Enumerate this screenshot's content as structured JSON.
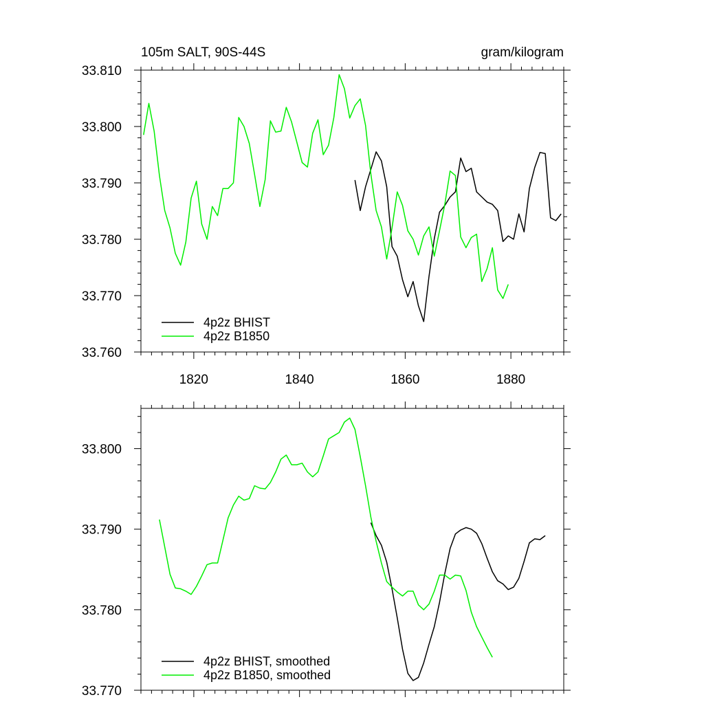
{
  "chart_data": [
    {
      "type": "line",
      "title_left": "105m SALT, 90S-44S",
      "title_right": "gram/kilogram",
      "xlim": [
        1810,
        1890
      ],
      "ylim": [
        33.76,
        33.81
      ],
      "xticks": [
        1820,
        1840,
        1860,
        1880
      ],
      "xtick_labels": [
        "1820",
        "1840",
        "1860",
        "1880"
      ],
      "yticks": [
        33.76,
        33.77,
        33.78,
        33.79,
        33.8,
        33.81
      ],
      "ytick_labels": [
        "33.760",
        "33.770",
        "33.780",
        "33.790",
        "33.800",
        "33.810"
      ],
      "legend_position": "bottom-left",
      "series": [
        {
          "name": "4p2z BHIST",
          "color": "#000000",
          "points": [
            [
              1850.5,
              33.7905
            ],
            [
              1851.5,
              33.7851
            ],
            [
              1852.5,
              33.7893
            ],
            [
              1853.5,
              33.7924
            ],
            [
              1854.5,
              33.7955
            ],
            [
              1855.5,
              33.7939
            ],
            [
              1856.5,
              33.7893
            ],
            [
              1857.5,
              33.7787
            ],
            [
              1858.5,
              33.777
            ],
            [
              1859.5,
              33.7728
            ],
            [
              1860.5,
              33.7698
            ],
            [
              1861.5,
              33.7725
            ],
            [
              1862.5,
              33.7682
            ],
            [
              1863.5,
              33.7654
            ],
            [
              1864.5,
              33.7734
            ],
            [
              1865.5,
              33.7801
            ],
            [
              1866.5,
              33.7848
            ],
            [
              1867.5,
              33.786
            ],
            [
              1868.5,
              33.7875
            ],
            [
              1869.5,
              33.7884
            ],
            [
              1870.5,
              33.7944
            ],
            [
              1871.5,
              33.792
            ],
            [
              1872.5,
              33.7926
            ],
            [
              1873.5,
              33.7884
            ],
            [
              1874.5,
              33.7875
            ],
            [
              1875.5,
              33.7866
            ],
            [
              1876.5,
              33.7862
            ],
            [
              1877.5,
              33.7851
            ],
            [
              1878.5,
              33.7796
            ],
            [
              1879.5,
              33.7806
            ],
            [
              1880.5,
              33.78
            ],
            [
              1881.5,
              33.7845
            ],
            [
              1882.5,
              33.7813
            ],
            [
              1883.5,
              33.789
            ],
            [
              1884.5,
              33.7927
            ],
            [
              1885.5,
              33.7954
            ],
            [
              1886.5,
              33.7952
            ],
            [
              1887.5,
              33.7838
            ],
            [
              1888.5,
              33.7833
            ],
            [
              1889.5,
              33.7845
            ]
          ]
        },
        {
          "name": "4p2z B1850",
          "color": "#00ee00",
          "points": [
            [
              1810.5,
              33.7985
            ],
            [
              1811.5,
              33.8041
            ],
            [
              1812.5,
              33.7992
            ],
            [
              1813.5,
              33.7913
            ],
            [
              1814.5,
              33.7851
            ],
            [
              1815.5,
              33.782
            ],
            [
              1816.5,
              33.7775
            ],
            [
              1817.5,
              33.7754
            ],
            [
              1818.5,
              33.7795
            ],
            [
              1819.5,
              33.7873
            ],
            [
              1820.5,
              33.7903
            ],
            [
              1821.5,
              33.7827
            ],
            [
              1822.5,
              33.78
            ],
            [
              1823.5,
              33.7858
            ],
            [
              1824.5,
              33.7842
            ],
            [
              1825.5,
              33.789
            ],
            [
              1826.5,
              33.789
            ],
            [
              1827.5,
              33.79
            ],
            [
              1828.5,
              33.8016
            ],
            [
              1829.5,
              33.8
            ],
            [
              1830.5,
              33.797
            ],
            [
              1831.5,
              33.7915
            ],
            [
              1832.5,
              33.7858
            ],
            [
              1833.5,
              33.7906
            ],
            [
              1834.5,
              33.801
            ],
            [
              1835.5,
              33.799
            ],
            [
              1836.5,
              33.7992
            ],
            [
              1837.5,
              33.8034
            ],
            [
              1838.5,
              33.8008
            ],
            [
              1839.5,
              33.7972
            ],
            [
              1840.5,
              33.7936
            ],
            [
              1841.5,
              33.7928
            ],
            [
              1842.5,
              33.7988
            ],
            [
              1843.5,
              33.8012
            ],
            [
              1844.5,
              33.795
            ],
            [
              1845.5,
              33.7967
            ],
            [
              1846.5,
              33.8016
            ],
            [
              1847.5,
              33.8092
            ],
            [
              1848.5,
              33.8067
            ],
            [
              1849.5,
              33.8015
            ],
            [
              1850.5,
              33.8037
            ],
            [
              1851.5,
              33.8049
            ],
            [
              1852.5,
              33.8002
            ],
            [
              1853.5,
              33.7916
            ],
            [
              1854.5,
              33.7851
            ],
            [
              1855.5,
              33.7822
            ],
            [
              1856.5,
              33.7765
            ],
            [
              1857.5,
              33.782
            ],
            [
              1858.5,
              33.7884
            ],
            [
              1859.5,
              33.786
            ],
            [
              1860.5,
              33.7815
            ],
            [
              1861.5,
              33.78
            ],
            [
              1862.5,
              33.7772
            ],
            [
              1863.5,
              33.7806
            ],
            [
              1864.5,
              33.7822
            ],
            [
              1865.5,
              33.777
            ],
            [
              1866.5,
              33.7815
            ],
            [
              1867.5,
              33.7862
            ],
            [
              1868.5,
              33.7921
            ],
            [
              1869.5,
              33.7913
            ],
            [
              1870.5,
              33.7804
            ],
            [
              1871.5,
              33.7785
            ],
            [
              1872.5,
              33.7803
            ],
            [
              1873.5,
              33.7809
            ],
            [
              1874.5,
              33.7725
            ],
            [
              1875.5,
              33.7748
            ],
            [
              1876.5,
              33.7785
            ],
            [
              1877.5,
              33.771
            ],
            [
              1878.5,
              33.7695
            ],
            [
              1879.5,
              33.772
            ]
          ]
        }
      ]
    },
    {
      "type": "line",
      "xlim": [
        1810,
        1890
      ],
      "ylim": [
        33.77,
        33.805
      ],
      "xticks": [
        1820,
        1840,
        1860,
        1880
      ],
      "yticks": [
        33.77,
        33.78,
        33.79,
        33.8
      ],
      "ytick_labels": [
        "33.770",
        "33.780",
        "33.790",
        "33.800"
      ],
      "legend_position": "bottom-left",
      "series": [
        {
          "name": "4p2z BHIST, smoothed",
          "color": "#000000",
          "points": [
            [
              1853.5,
              33.7908
            ],
            [
              1854.5,
              33.7892
            ],
            [
              1855.5,
              33.788
            ],
            [
              1856.5,
              33.7859
            ],
            [
              1857.5,
              33.7826
            ],
            [
              1858.5,
              33.779
            ],
            [
              1859.5,
              33.7751
            ],
            [
              1860.5,
              33.7721
            ],
            [
              1861.5,
              33.7712
            ],
            [
              1862.5,
              33.7716
            ],
            [
              1863.5,
              33.7734
            ],
            [
              1864.5,
              33.7757
            ],
            [
              1865.5,
              33.7779
            ],
            [
              1866.5,
              33.7809
            ],
            [
              1867.5,
              33.7845
            ],
            [
              1868.5,
              33.7876
            ],
            [
              1869.5,
              33.7894
            ],
            [
              1870.5,
              33.7899
            ],
            [
              1871.5,
              33.7902
            ],
            [
              1872.5,
              33.79
            ],
            [
              1873.5,
              33.7895
            ],
            [
              1874.5,
              33.7882
            ],
            [
              1875.5,
              33.7864
            ],
            [
              1876.5,
              33.7847
            ],
            [
              1877.5,
              33.7836
            ],
            [
              1878.5,
              33.7832
            ],
            [
              1879.5,
              33.7825
            ],
            [
              1880.5,
              33.7828
            ],
            [
              1881.5,
              33.7839
            ],
            [
              1882.5,
              33.786
            ],
            [
              1883.5,
              33.7883
            ],
            [
              1884.5,
              33.7888
            ],
            [
              1885.5,
              33.7887
            ],
            [
              1886.5,
              33.7892
            ]
          ]
        },
        {
          "name": "4p2z B1850, smoothed",
          "color": "#00ee00",
          "points": [
            [
              1813.5,
              33.7912
            ],
            [
              1814.5,
              33.7878
            ],
            [
              1815.5,
              33.7844
            ],
            [
              1816.5,
              33.7827
            ],
            [
              1817.5,
              33.7826
            ],
            [
              1818.5,
              33.7823
            ],
            [
              1819.5,
              33.7819
            ],
            [
              1820.5,
              33.7829
            ],
            [
              1821.5,
              33.7842
            ],
            [
              1822.5,
              33.7856
            ],
            [
              1823.5,
              33.7858
            ],
            [
              1824.5,
              33.7858
            ],
            [
              1825.5,
              33.7886
            ],
            [
              1826.5,
              33.7914
            ],
            [
              1827.5,
              33.793
            ],
            [
              1828.5,
              33.7941
            ],
            [
              1829.5,
              33.7936
            ],
            [
              1830.5,
              33.7938
            ],
            [
              1831.5,
              33.7954
            ],
            [
              1832.5,
              33.7951
            ],
            [
              1833.5,
              33.795
            ],
            [
              1834.5,
              33.7958
            ],
            [
              1835.5,
              33.7971
            ],
            [
              1836.5,
              33.7987
            ],
            [
              1837.5,
              33.7992
            ],
            [
              1838.5,
              33.798
            ],
            [
              1839.5,
              33.798
            ],
            [
              1840.5,
              33.7982
            ],
            [
              1841.5,
              33.7971
            ],
            [
              1842.5,
              33.7965
            ],
            [
              1843.5,
              33.7971
            ],
            [
              1844.5,
              33.7991
            ],
            [
              1845.5,
              33.8012
            ],
            [
              1846.5,
              33.8016
            ],
            [
              1847.5,
              33.802
            ],
            [
              1848.5,
              33.8033
            ],
            [
              1849.5,
              33.8038
            ],
            [
              1850.5,
              33.8024
            ],
            [
              1851.5,
              33.799
            ],
            [
              1852.5,
              33.7954
            ],
            [
              1853.5,
              33.7915
            ],
            [
              1854.5,
              33.7885
            ],
            [
              1855.5,
              33.7858
            ],
            [
              1856.5,
              33.7835
            ],
            [
              1857.5,
              33.7828
            ],
            [
              1858.5,
              33.7822
            ],
            [
              1859.5,
              33.7817
            ],
            [
              1860.5,
              33.7823
            ],
            [
              1861.5,
              33.7823
            ],
            [
              1862.5,
              33.7806
            ],
            [
              1863.5,
              33.78
            ],
            [
              1864.5,
              33.7807
            ],
            [
              1865.5,
              33.7823
            ],
            [
              1866.5,
              33.7843
            ],
            [
              1867.5,
              33.7843
            ],
            [
              1868.5,
              33.7838
            ],
            [
              1869.5,
              33.7843
            ],
            [
              1870.5,
              33.7842
            ],
            [
              1871.5,
              33.7824
            ],
            [
              1872.5,
              33.7797
            ],
            [
              1873.5,
              33.7779
            ],
            [
              1874.5,
              33.7766
            ],
            [
              1875.5,
              33.7753
            ],
            [
              1876.5,
              33.7741
            ]
          ]
        }
      ]
    }
  ]
}
